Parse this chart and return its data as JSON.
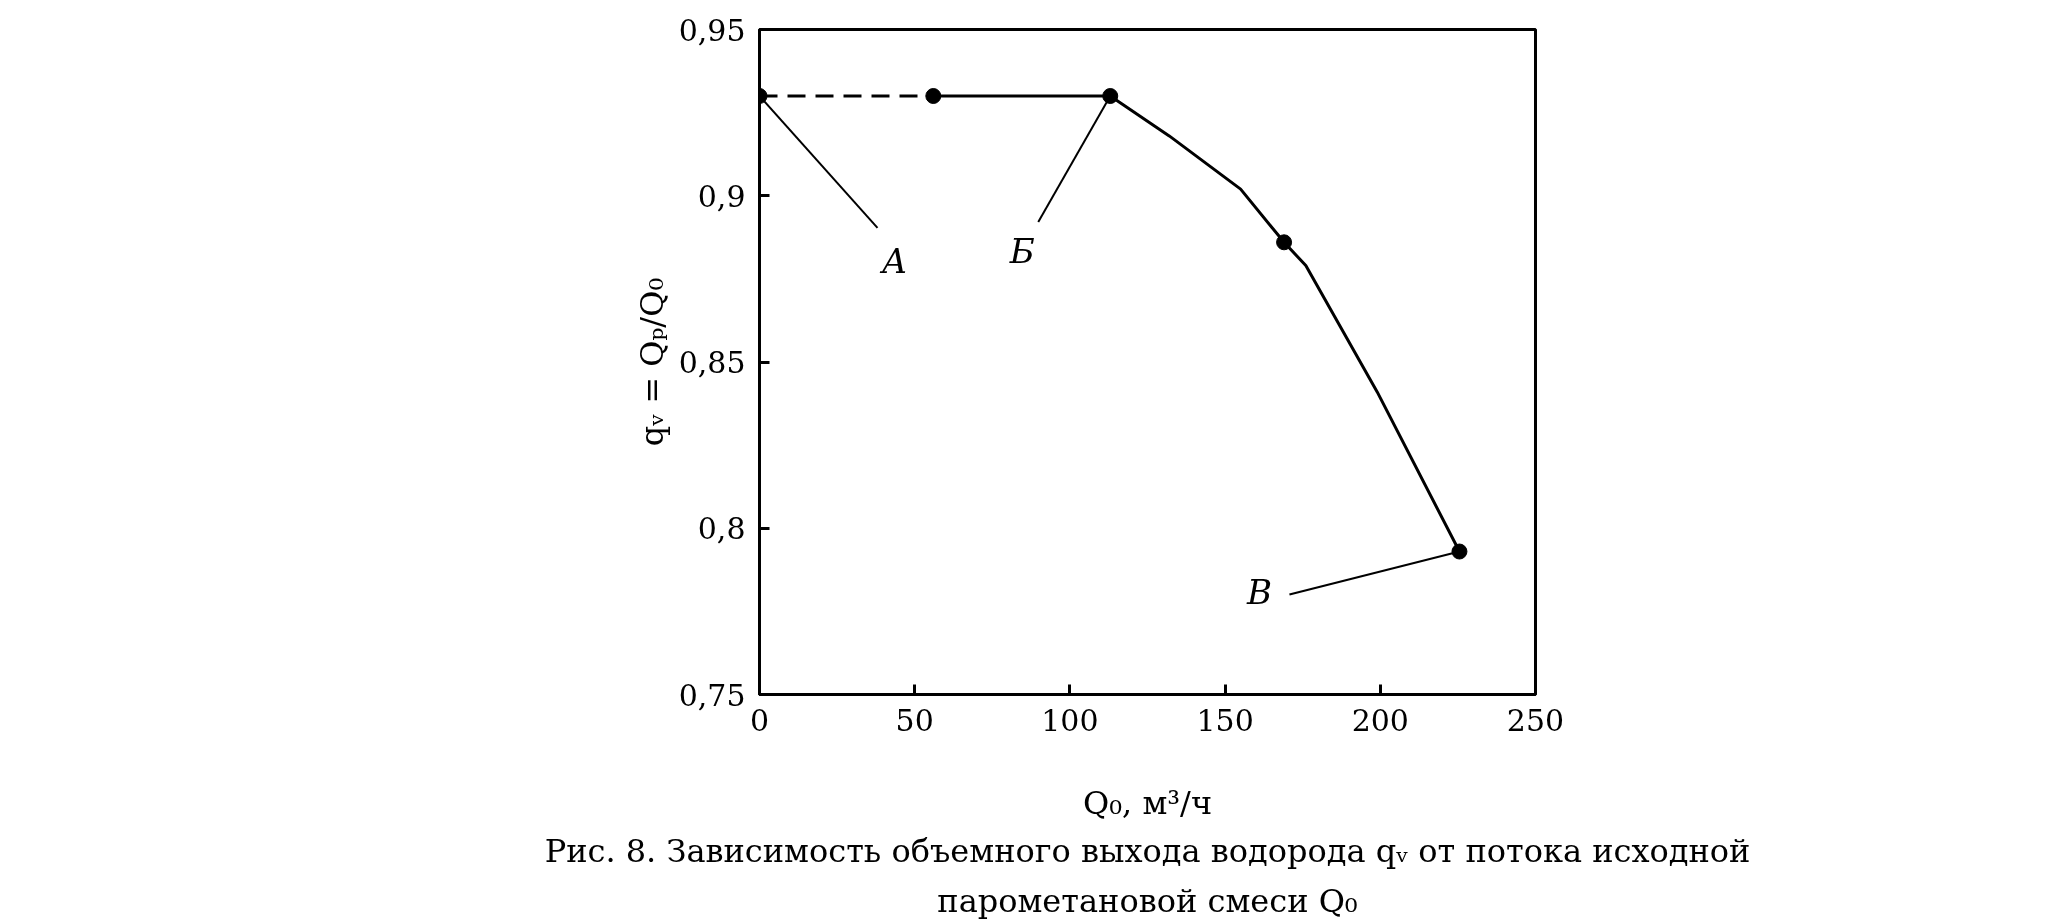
{
  "chart_data": {
    "type": "line",
    "title": "Рис. 8. Зависимость объемного выхода водорода qᵥ от потока исходной\nпарометановой смеси Q₀",
    "xlabel": "Q₀, м³/ч",
    "ylabel": "qᵥ = Qₚ/Q₀",
    "xlim": [
      0,
      250
    ],
    "xticks": [
      0,
      50,
      100,
      150,
      200,
      250
    ],
    "ylim": [
      0.75,
      0.95
    ],
    "yticks": [
      {
        "value": 0.75,
        "label": "0,75"
      },
      {
        "value": 0.8,
        "label": "0,8"
      },
      {
        "value": 0.85,
        "label": "0,85"
      },
      {
        "value": 0.9,
        "label": "0,9"
      },
      {
        "value": 0.95,
        "label": "0,95"
      }
    ],
    "grid": false,
    "series": [
      {
        "color": "#000000",
        "line_style": "dashed",
        "marker": "none",
        "x": [
          0,
          56
        ],
        "values": [
          0.93,
          0.93
        ]
      },
      {
        "color": "#000000",
        "line_style": "solid",
        "marker": "none",
        "x": [
          56,
          113,
          132,
          155,
          169,
          176,
          199,
          225.5
        ],
        "values": [
          0.93,
          0.93,
          0.918,
          0.902,
          0.886,
          0.879,
          0.841,
          0.793
        ]
      },
      {
        "type": "scatter",
        "color": "#000000",
        "marker": "circle",
        "x": [
          0,
          56,
          113,
          169,
          225.5
        ],
        "values": [
          0.93,
          0.93,
          0.93,
          0.886,
          0.793
        ]
      }
    ],
    "annotations": [
      {
        "text": "А",
        "x": 0,
        "y": 0.93
      },
      {
        "text": "Б",
        "x": 113,
        "y": 0.93
      },
      {
        "text": "В",
        "x": 225.5,
        "y": 0.793
      }
    ]
  }
}
